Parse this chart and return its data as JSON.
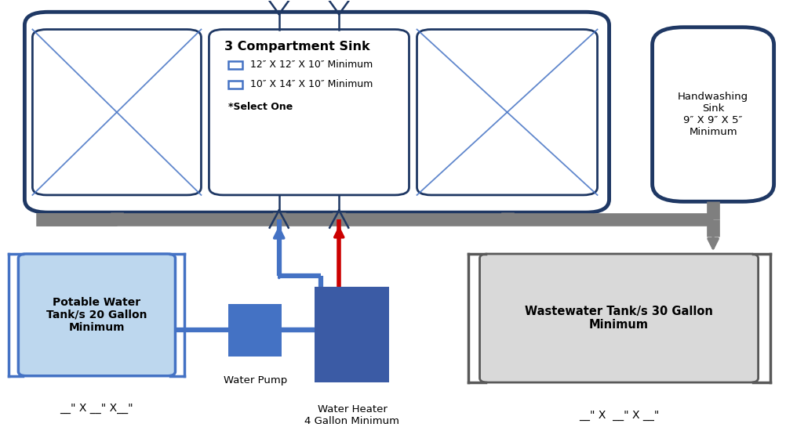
{
  "bg_color": "#ffffff",
  "dark_blue": "#1F3864",
  "med_blue": "#4472C4",
  "light_blue": "#BDD7EE",
  "gray_pipe": "#7F7F7F",
  "dark_gray": "#595959",
  "red": "#CC0000",
  "waste_fill": "#D9D9D9",
  "heater_fill": "#3B5BA5",
  "sink_title": "3 Compartment Sink",
  "sink_option1": "12″ X 12″ X 10″ Minimum",
  "sink_option2": "10″ X 14″ X 10″ Minimum",
  "sink_select": "*Select One",
  "hw_sink_text": "Handwashing\nSink\n9″ X 9″ X 5″\nMinimum",
  "potable_text": "Potable Water\nTank/s 20 Gallon\nMinimum",
  "waste_text": "Wastewater Tank/s 30 Gallon\nMinimum",
  "pump_label": "Water Pump",
  "heater_label": "Water Heater\n4 Gallon Minimum",
  "dim_label_left": "__\" X __\" X__\"",
  "dim_label_right": "__\" X  __\" X __\""
}
